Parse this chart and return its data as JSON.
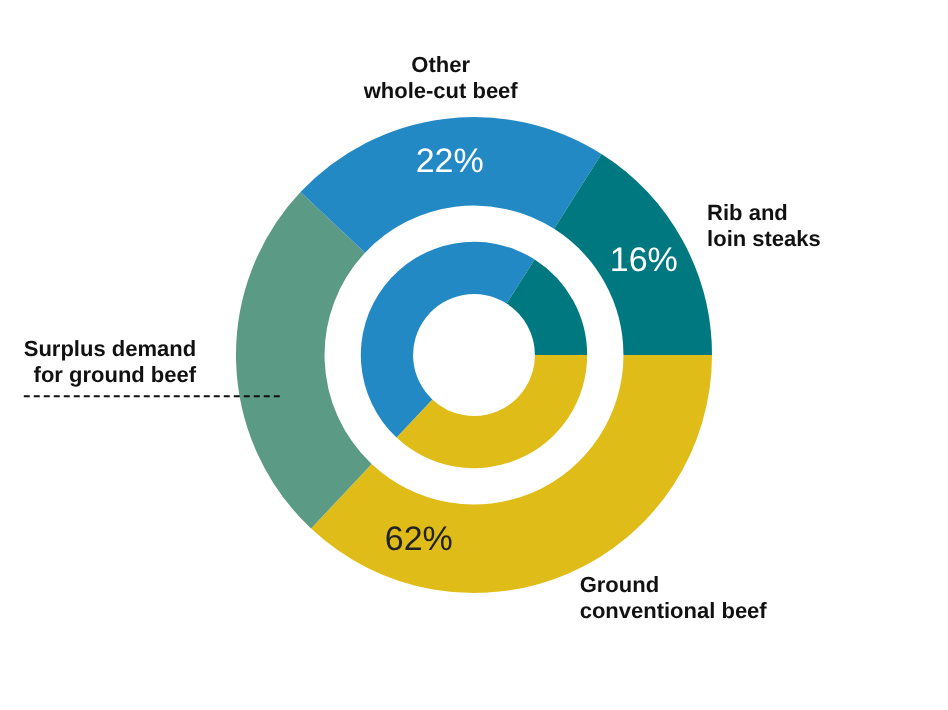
{
  "chart_data": {
    "type": "donut",
    "categories": [
      "Ground conventional beef",
      "Surplus demand for ground beef",
      "Other whole-cut beef",
      "Rib and loin steaks"
    ],
    "series": [
      {
        "colors": [
          "#e0bc18",
          "#5b9b86",
          "#2389c4",
          "#00787f"
        ],
        "values": [
          37,
          25,
          22,
          16
        ],
        "value_labels": [
          null,
          null,
          "22%",
          "16%"
        ]
      },
      {
        "colors": [
          "#e0bc18",
          null,
          "#2389c4",
          "#00787f"
        ],
        "values": [
          37,
          null,
          47,
          16
        ]
      }
    ],
    "annotations": [
      "62%"
    ],
    "legend": false
  }
}
